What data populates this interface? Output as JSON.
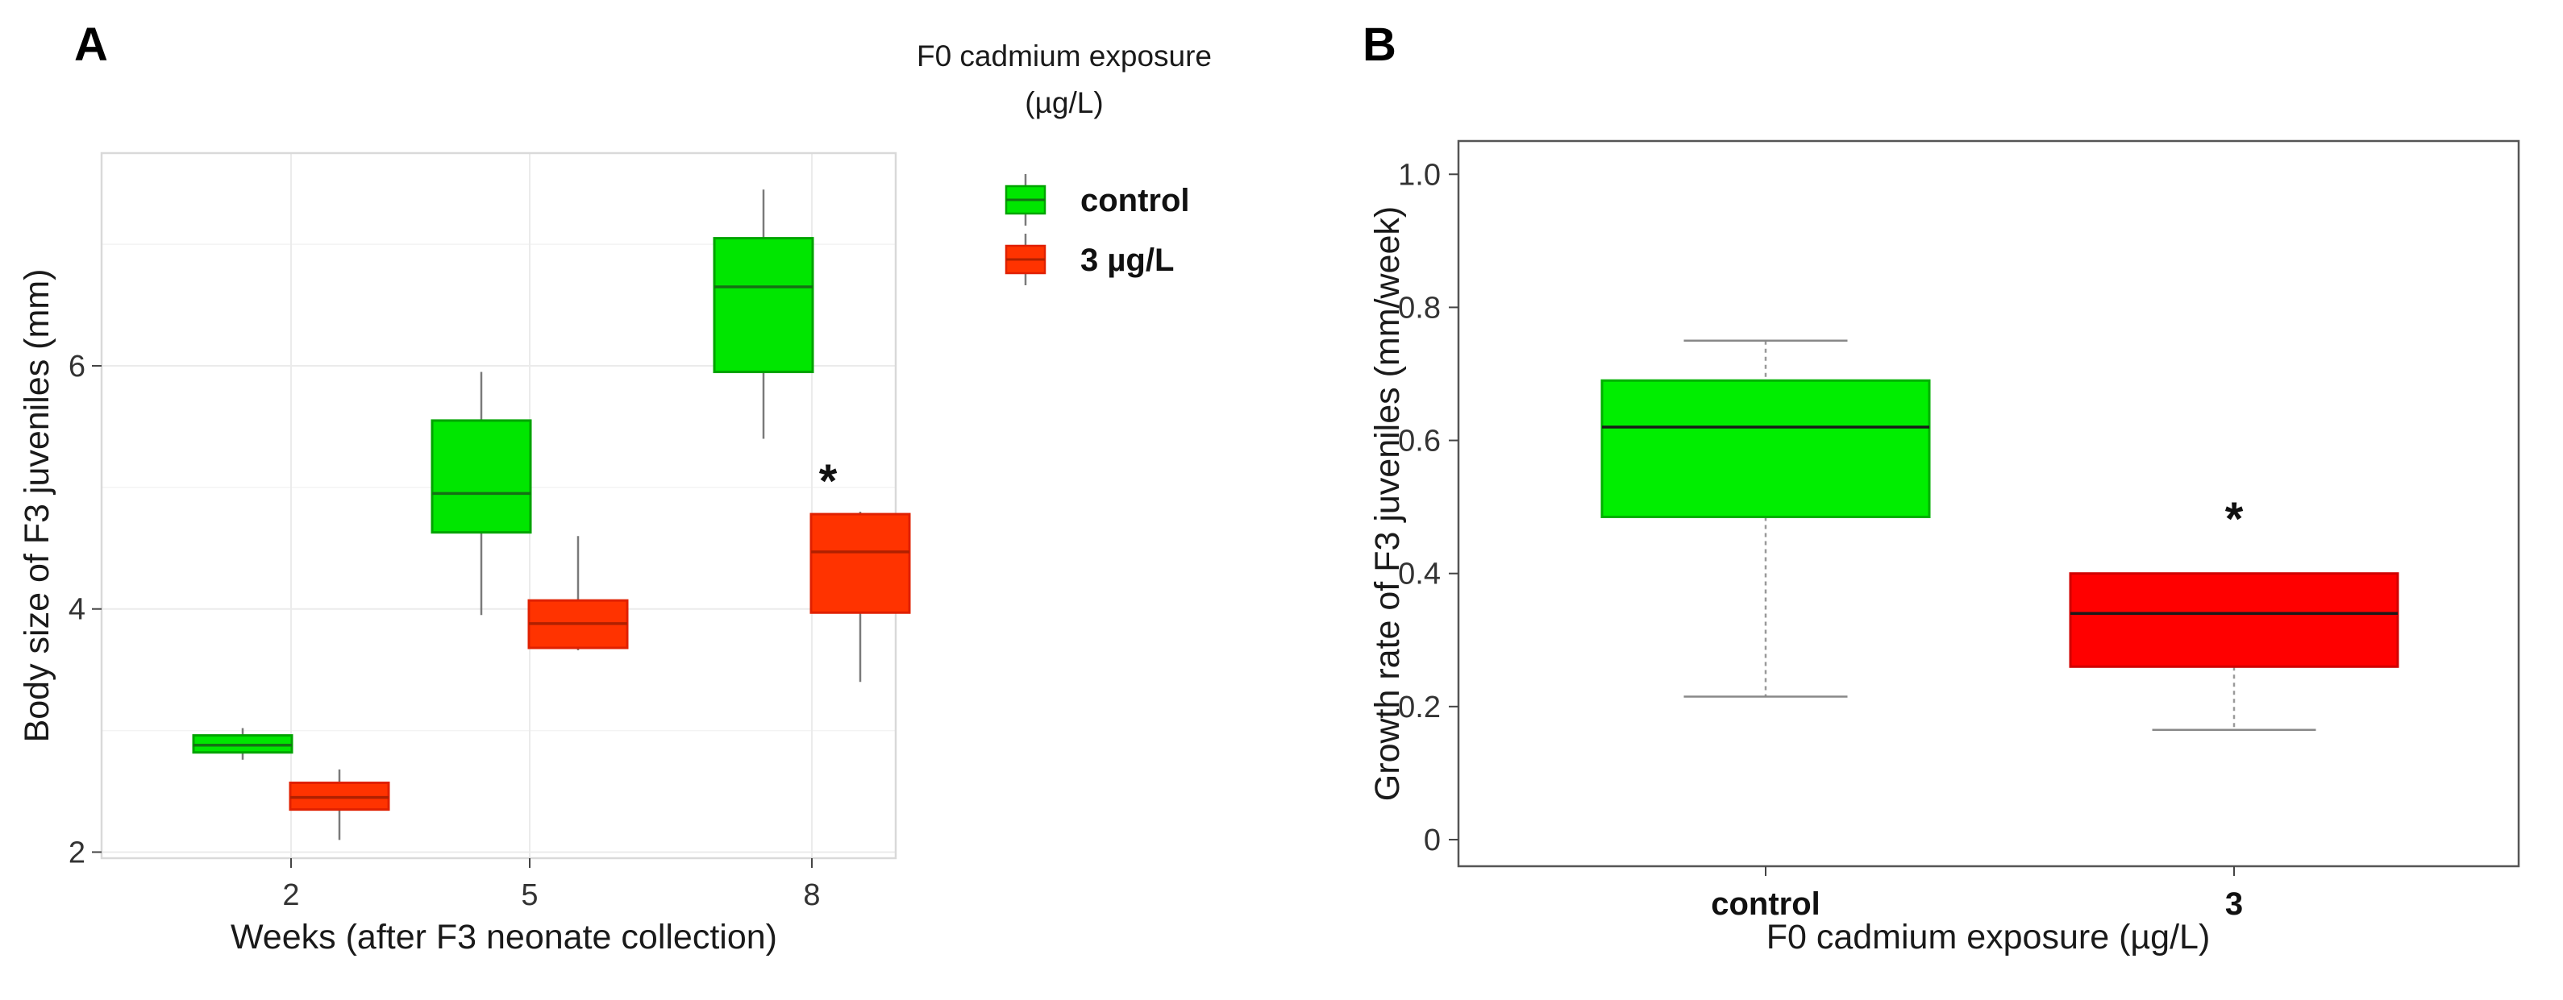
{
  "chart_data": [
    {
      "panel": "A",
      "type": "box",
      "xlabel": "Weeks (after F3 neonate collection)",
      "ylabel": "Body size of F3 juveniles (mm)",
      "ylim": [
        1.95,
        7.75
      ],
      "yticks": [
        2,
        4,
        6
      ],
      "categories": [
        "2",
        "5",
        "8"
      ],
      "legend": {
        "title_line1": "F0 cadmium exposure",
        "title_line2": "(µg/L)",
        "placement": "top-right outside"
      },
      "series": [
        {
          "name": "control",
          "color": "#00e600",
          "stroke": "#00a300",
          "boxes": [
            {
              "category": "2",
              "min": 2.76,
              "q1": 2.82,
              "median": 2.88,
              "q3": 2.96,
              "max": 3.02
            },
            {
              "category": "5",
              "min": 3.95,
              "q1": 4.63,
              "median": 4.95,
              "q3": 5.55,
              "max": 5.95
            },
            {
              "category": "8",
              "min": 5.4,
              "q1": 5.95,
              "median": 6.65,
              "q3": 7.05,
              "max": 7.45
            }
          ]
        },
        {
          "name": "3 µg/L",
          "color": "#ff3300",
          "stroke": "#e02000",
          "boxes": [
            {
              "category": "2",
              "min": 2.1,
              "q1": 2.35,
              "median": 2.45,
              "q3": 2.57,
              "max": 2.68
            },
            {
              "category": "5",
              "min": 3.66,
              "q1": 3.68,
              "median": 3.88,
              "q3": 4.07,
              "max": 4.6
            },
            {
              "category": "8",
              "min": 3.4,
              "q1": 3.97,
              "median": 4.47,
              "q3": 4.78,
              "max": 4.8
            }
          ]
        }
      ],
      "annotations": [
        {
          "text": "*",
          "category": "8",
          "y": 5.15
        }
      ]
    },
    {
      "panel": "B",
      "type": "box",
      "xlabel": "F0 cadmium exposure (µg/L)",
      "ylabel": "Growth rate of F3 juveniles (mm/week)",
      "ylim": [
        -0.04,
        1.05
      ],
      "yticks": [
        0,
        0.2,
        0.4,
        0.6,
        0.8,
        1.0
      ],
      "ytick_labels": [
        "0",
        "0.2",
        "0.4",
        "0.6",
        "0.8",
        "1.0"
      ],
      "categories": [
        "control",
        "3"
      ],
      "boxes": [
        {
          "category": "control",
          "min": 0.215,
          "q1": 0.485,
          "median": 0.62,
          "q3": 0.69,
          "max": 0.75,
          "color": "#00ee00",
          "stroke": "#00b000"
        },
        {
          "category": "3",
          "min": 0.165,
          "q1": 0.26,
          "median": 0.34,
          "q3": 0.4,
          "max": 0.4,
          "color": "#ff0000",
          "stroke": "#d00000"
        }
      ],
      "annotations": [
        {
          "text": "*",
          "category": "3",
          "y": 0.5
        }
      ]
    }
  ]
}
